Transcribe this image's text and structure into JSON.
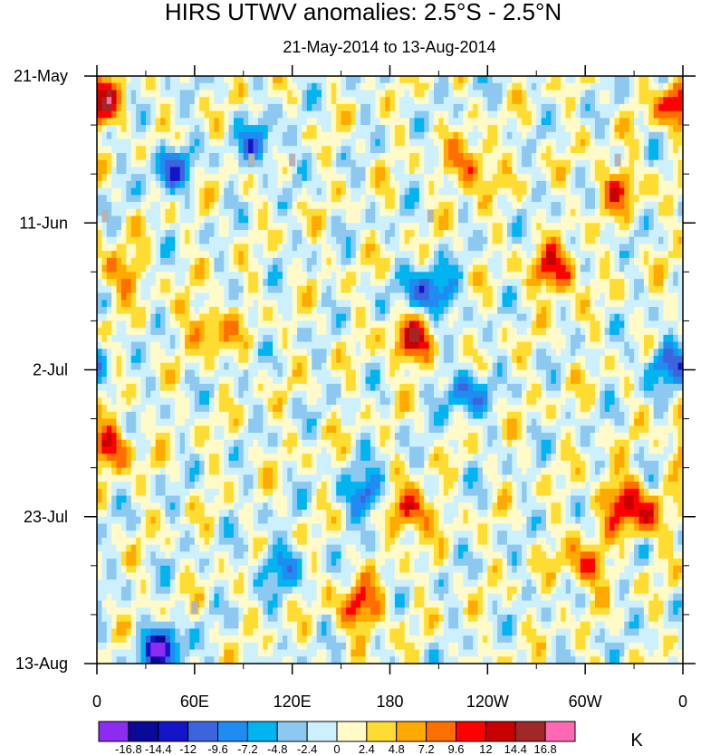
{
  "chart_data": {
    "type": "heatmap",
    "title": "HIRS UTWV anomalies: 2.5°S - 2.5°N",
    "subtitle": "21-May-2014 to 13-Aug-2014",
    "x_ticks": [
      "0",
      "60E",
      "120E",
      "180",
      "120W",
      "60W",
      "0"
    ],
    "x_range_deg_east": [
      0,
      360
    ],
    "y_ticks": [
      "21-May",
      "11-Jun",
      "2-Jul",
      "23-Jul",
      "13-Aug"
    ],
    "y_range_days": [
      0,
      84
    ],
    "colorbar_levels": [
      "-16.8",
      "-14.4",
      "-12",
      "-9.6",
      "-7.2",
      "-4.8",
      "-2.4",
      "0",
      "2.4",
      "4.8",
      "7.2",
      "9.6",
      "12",
      "14.4",
      "16.8"
    ],
    "colorbar_colors": [
      "#8c2cf0",
      "#0a0a96",
      "#1414c8",
      "#3c64dc",
      "#1e8cf0",
      "#00b4f0",
      "#8cc8f0",
      "#cdf0ff",
      "#fffac8",
      "#ffdc32",
      "#ffaa00",
      "#ff6e00",
      "#ff0000",
      "#c80000",
      "#a02828",
      "#ff69b4"
    ],
    "units": "K",
    "missing_color": "#b4b4b4",
    "notable_features": [
      {
        "lon": 195,
        "day": 38,
        "value": 13.0
      },
      {
        "lon": 190,
        "day": 62,
        "value": 14.0
      },
      {
        "lon": 168,
        "day": 60,
        "value": -12.0
      },
      {
        "lon": 162,
        "day": 76,
        "value": 11.0
      },
      {
        "lon": 282,
        "day": 28,
        "value": 12.5
      },
      {
        "lon": 8,
        "day": 53,
        "value": 11.5
      },
      {
        "lon": 335,
        "day": 63,
        "value": 10.0
      },
      {
        "lon": 40,
        "day": 82,
        "value": -14.0
      },
      {
        "lon": 205,
        "day": 31,
        "value": -13.0
      },
      {
        "lon": 350,
        "day": 41,
        "value": -10.0
      },
      {
        "lon": 45,
        "day": 13,
        "value": -9.0
      },
      {
        "lon": 230,
        "day": 13,
        "value": 10.0
      },
      {
        "lon": 70,
        "day": 36,
        "value": 8.5
      },
      {
        "lon": 15,
        "day": 28,
        "value": 8.0
      },
      {
        "lon": 320,
        "day": 16,
        "value": 8.5
      },
      {
        "lon": 225,
        "day": 45,
        "value": -9.5
      },
      {
        "lon": 110,
        "day": 70,
        "value": -8.0
      },
      {
        "lon": 355,
        "day": 4,
        "value": 8.0
      },
      {
        "lon": 5,
        "day": 4,
        "value": 7.5
      },
      {
        "lon": 100,
        "day": 10,
        "value": -8.5
      },
      {
        "lon": 320,
        "day": 60,
        "value": 9.0
      },
      {
        "lon": 300,
        "day": 70,
        "value": 9.5
      }
    ]
  }
}
